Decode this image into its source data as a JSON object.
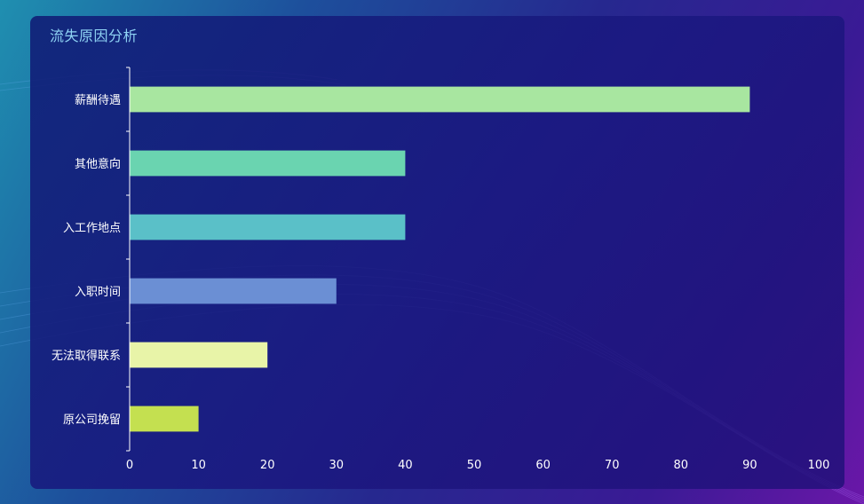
{
  "title": "流失原因分析",
  "chart_data": {
    "type": "bar",
    "orientation": "horizontal",
    "title": "流失原因分析",
    "categories": [
      "薪酬待遇",
      "其他意向",
      "入工作地点",
      "入职时间",
      "无法取得联系",
      "原公司挽留"
    ],
    "values": [
      90,
      40,
      40,
      30,
      20,
      10
    ],
    "colors": [
      "#a8e6a0",
      "#6ad4b0",
      "#5ac0c8",
      "#6b8fd4",
      "#e8f4a8",
      "#c4e050"
    ],
    "xlim": [
      0,
      100
    ],
    "x_ticks": [
      0,
      10,
      20,
      30,
      40,
      50,
      60,
      70,
      80,
      90,
      100
    ],
    "grid": false,
    "legend": "none"
  }
}
